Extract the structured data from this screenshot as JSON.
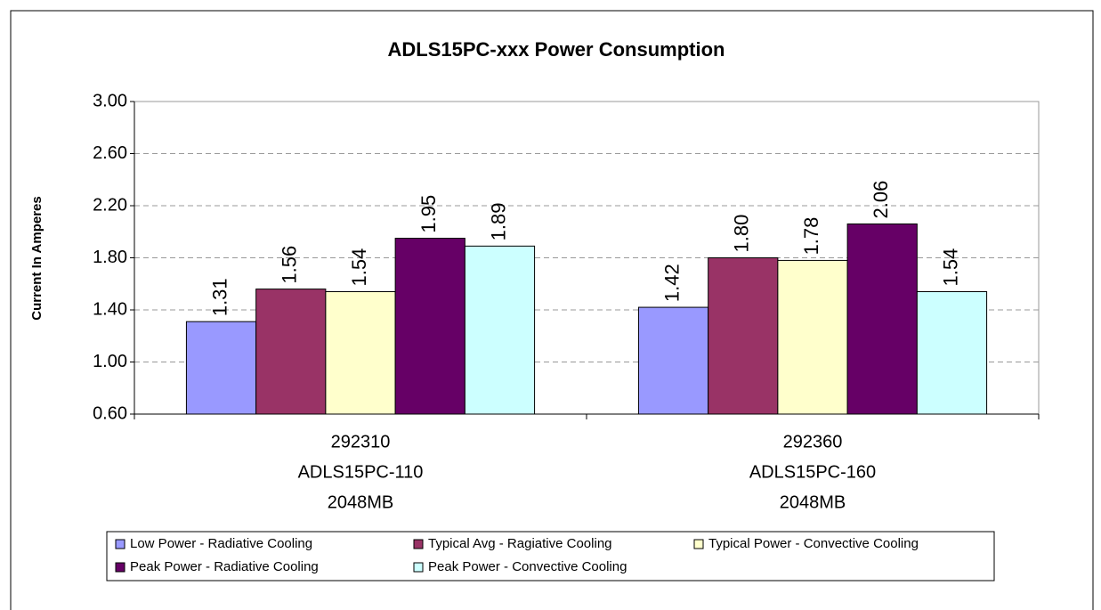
{
  "chart_data": {
    "type": "bar",
    "title": "ADLS15PC-xxx Power Consumption",
    "y_label": "Current In Amperes",
    "categories": [
      [
        "292310",
        "ADLS15PC-110",
        "2048MB"
      ],
      [
        "292360",
        "ADLS15PC-160",
        "2048MB"
      ]
    ],
    "series": [
      {
        "name": "Low Power - Radiative Cooling",
        "color": "#9999ff",
        "values": [
          1.31,
          1.42
        ],
        "value_labels": [
          "1.31",
          "1.42"
        ]
      },
      {
        "name": "Typical Avg - Ragiative Cooling",
        "color": "#993366",
        "values": [
          1.56,
          1.8
        ],
        "value_labels": [
          "1.56",
          "1.80"
        ]
      },
      {
        "name": "Typical Power - Convective Cooling",
        "color": "#ffffcc",
        "values": [
          1.54,
          1.78
        ],
        "value_labels": [
          "1.54",
          "1.78"
        ]
      },
      {
        "name": "Peak Power - Radiative Cooling",
        "color": "#660066",
        "values": [
          1.95,
          2.06
        ],
        "value_labels": [
          "1.95",
          "2.06"
        ]
      },
      {
        "name": "Peak Power - Convective Cooling",
        "color": "#ccffff",
        "values": [
          1.89,
          1.54
        ],
        "value_labels": [
          "1.89",
          "1.54"
        ]
      }
    ],
    "ylim": [
      0.6,
      3.0
    ],
    "yticks": [
      {
        "value": 0.6,
        "label": "0.60"
      },
      {
        "value": 1.0,
        "label": "1.00"
      },
      {
        "value": 1.4,
        "label": "1.40"
      },
      {
        "value": 1.8,
        "label": "1.80"
      },
      {
        "value": 2.2,
        "label": "2.20"
      },
      {
        "value": 2.6,
        "label": "2.60"
      },
      {
        "value": 3.0,
        "label": "3.00"
      }
    ],
    "grid": true,
    "legend": "bottom"
  }
}
